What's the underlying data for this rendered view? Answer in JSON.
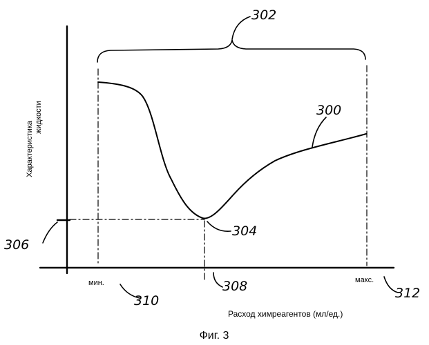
{
  "diagram": {
    "y_axis_label_line1": "Характеристика",
    "y_axis_label_line2": "жидкости",
    "x_axis_label": "Расход химреагентов (мл/ед.)",
    "tick_min": "мин.",
    "tick_max": "макс.",
    "ref_curve": "300",
    "ref_range": "302",
    "ref_minimum_point": "304",
    "ref_y_level": "306",
    "ref_x_at_minimum": "308",
    "ref_min_dose": "310",
    "ref_max_dose": "312"
  },
  "caption": "Фиг. 3"
}
